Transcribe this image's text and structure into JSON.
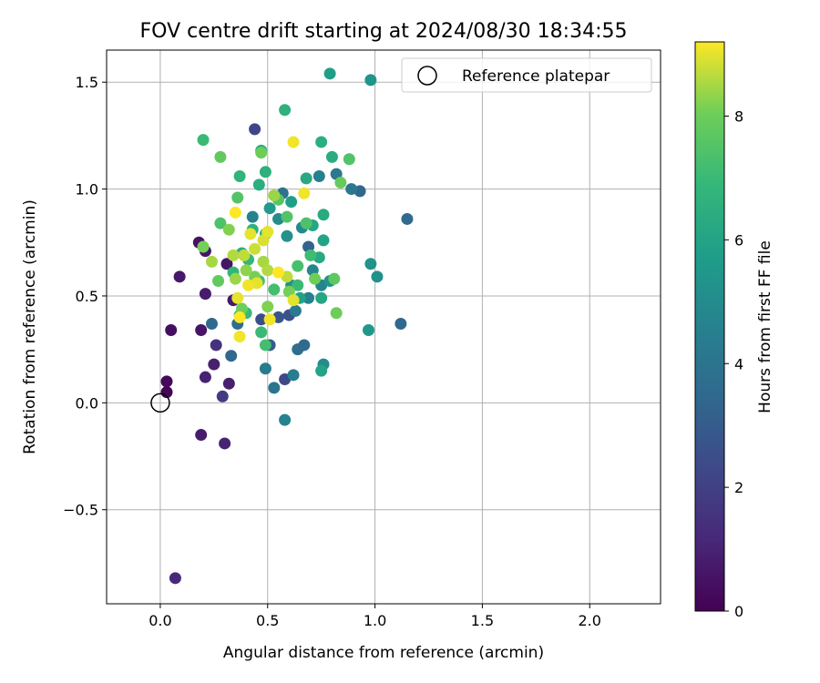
{
  "chart_data": {
    "type": "scatter",
    "title": "FOV centre drift starting at 2024/08/30 18:34:55",
    "xlabel": "Angular distance from reference (arcmin)",
    "ylabel": "Rotation from reference (arcmin)",
    "xlim": [
      -0.25,
      2.33
    ],
    "ylim": [
      -0.94,
      1.65
    ],
    "xticks": [
      {
        "v": 0.0,
        "label": "0.0"
      },
      {
        "v": 0.5,
        "label": "0.5"
      },
      {
        "v": 1.0,
        "label": "1.0"
      },
      {
        "v": 1.5,
        "label": "1.5"
      },
      {
        "v": 2.0,
        "label": "2.0"
      }
    ],
    "yticks": [
      {
        "v": -0.5,
        "label": "−0.5"
      },
      {
        "v": 0.0,
        "label": "0.0"
      },
      {
        "v": 0.5,
        "label": "0.5"
      },
      {
        "v": 1.0,
        "label": "1.0"
      },
      {
        "v": 1.5,
        "label": "1.5"
      }
    ],
    "grid": true,
    "legend": {
      "position": "top-right",
      "label": "Reference platepar"
    },
    "reference_point": {
      "x": 0.0,
      "y": 0.0
    },
    "colorbar": {
      "label": "Hours from first FF file",
      "min": 0,
      "max": 9.2,
      "colormap": "viridis",
      "ticks": [
        {
          "v": 0,
          "label": "0"
        },
        {
          "v": 2,
          "label": "2"
        },
        {
          "v": 4,
          "label": "4"
        },
        {
          "v": 6,
          "label": "6"
        },
        {
          "v": 8,
          "label": "8"
        }
      ]
    },
    "points": [
      [
        0.03,
        0.05,
        0.1
      ],
      [
        0.03,
        0.1,
        0.2
      ],
      [
        0.05,
        0.34,
        0.4
      ],
      [
        0.18,
        0.75,
        0.5
      ],
      [
        0.21,
        0.71,
        0.6
      ],
      [
        0.09,
        0.59,
        0.7
      ],
      [
        0.21,
        0.51,
        0.8
      ],
      [
        0.19,
        0.34,
        0.6
      ],
      [
        0.31,
        0.65,
        0.6
      ],
      [
        0.34,
        0.48,
        0.7
      ],
      [
        0.25,
        0.18,
        0.9
      ],
      [
        0.32,
        0.09,
        0.9
      ],
      [
        0.21,
        0.12,
        1.0
      ],
      [
        0.19,
        -0.15,
        0.8
      ],
      [
        0.3,
        -0.19,
        1.0
      ],
      [
        0.07,
        -0.82,
        1.2
      ],
      [
        0.26,
        0.27,
        1.5
      ],
      [
        0.29,
        0.03,
        1.8
      ],
      [
        0.44,
        1.28,
        2.2
      ],
      [
        0.58,
        0.11,
        2.3
      ],
      [
        0.47,
        0.39,
        2.5
      ],
      [
        0.51,
        0.27,
        3.0
      ],
      [
        0.55,
        0.4,
        2.8
      ],
      [
        0.6,
        0.41,
        2.6
      ],
      [
        0.33,
        0.22,
        3.4
      ],
      [
        0.24,
        0.37,
        3.5
      ],
      [
        0.36,
        0.37,
        3.7
      ],
      [
        0.93,
        0.99,
        3.4
      ],
      [
        1.15,
        0.86,
        3.6
      ],
      [
        1.12,
        0.37,
        3.5
      ],
      [
        0.69,
        0.73,
        3.3
      ],
      [
        0.64,
        0.25,
        3.7
      ],
      [
        0.67,
        0.27,
        3.6
      ],
      [
        0.53,
        0.07,
        4.0
      ],
      [
        0.49,
        0.16,
        4.3
      ],
      [
        0.62,
        0.13,
        4.4
      ],
      [
        0.58,
        -0.08,
        4.6
      ],
      [
        0.57,
        0.98,
        3.9
      ],
      [
        0.89,
        1.0,
        4.1
      ],
      [
        0.82,
        1.07,
        4.2
      ],
      [
        0.74,
        1.06,
        4.5
      ],
      [
        0.63,
        0.43,
        4.2
      ],
      [
        0.69,
        0.49,
        4.5
      ],
      [
        0.75,
        0.55,
        4.7
      ],
      [
        0.76,
        0.18,
        5.0
      ],
      [
        0.71,
        0.62,
        4.8
      ],
      [
        0.66,
        0.82,
        4.9
      ],
      [
        0.43,
        0.87,
        4.6
      ],
      [
        0.55,
        0.86,
        5.0
      ],
      [
        0.59,
        0.78,
        5.2
      ],
      [
        0.61,
        0.55,
        5.1
      ],
      [
        0.79,
        0.57,
        5.3
      ],
      [
        0.97,
        0.34,
        5.5
      ],
      [
        0.98,
        0.65,
        5.3
      ],
      [
        1.01,
        0.59,
        5.2
      ],
      [
        0.98,
        1.51,
        5.4
      ],
      [
        0.79,
        1.54,
        5.8
      ],
      [
        0.51,
        0.91,
        5.6
      ],
      [
        0.61,
        0.94,
        5.8
      ],
      [
        0.65,
        0.49,
        5.9
      ],
      [
        0.75,
        0.15,
        6.0
      ],
      [
        0.75,
        0.49,
        6.1
      ],
      [
        0.74,
        0.68,
        6.2
      ],
      [
        0.76,
        0.76,
        6.0
      ],
      [
        0.71,
        0.83,
        6.1
      ],
      [
        0.76,
        0.88,
        6.3
      ],
      [
        0.8,
        1.15,
        6.4
      ],
      [
        0.75,
        1.22,
        6.5
      ],
      [
        0.68,
        1.05,
        6.2
      ],
      [
        0.58,
        1.37,
        6.6
      ],
      [
        0.47,
        1.18,
        6.4
      ],
      [
        0.46,
        1.02,
        6.5
      ],
      [
        0.49,
        1.08,
        6.6
      ],
      [
        0.37,
        1.06,
        6.7
      ],
      [
        0.49,
        0.79,
        6.8
      ],
      [
        0.43,
        0.81,
        6.6
      ],
      [
        0.41,
        0.67,
        6.9
      ],
      [
        0.38,
        0.7,
        6.5
      ],
      [
        0.34,
        0.61,
        6.8
      ],
      [
        0.4,
        0.42,
        7.0
      ],
      [
        0.37,
        0.41,
        6.9
      ],
      [
        0.47,
        0.33,
        7.0
      ],
      [
        0.49,
        0.27,
        7.2
      ],
      [
        0.46,
        0.57,
        7.1
      ],
      [
        0.53,
        0.53,
        7.2
      ],
      [
        0.64,
        0.55,
        7.0
      ],
      [
        0.64,
        0.64,
        7.3
      ],
      [
        0.7,
        0.69,
        7.1
      ],
      [
        0.68,
        0.84,
        7.4
      ],
      [
        0.59,
        0.87,
        7.5
      ],
      [
        0.55,
        0.95,
        7.6
      ],
      [
        0.36,
        0.96,
        7.5
      ],
      [
        0.28,
        0.84,
        7.4
      ],
      [
        0.2,
        1.23,
        7.0
      ],
      [
        0.28,
        1.15,
        7.8
      ],
      [
        0.47,
        1.17,
        8.0
      ],
      [
        0.84,
        1.03,
        7.9
      ],
      [
        0.88,
        1.14,
        7.5
      ],
      [
        0.81,
        0.58,
        7.7
      ],
      [
        0.82,
        0.42,
        8.0
      ],
      [
        0.72,
        0.58,
        8.0
      ],
      [
        0.6,
        0.52,
        8.1
      ],
      [
        0.5,
        0.45,
        8.2
      ],
      [
        0.44,
        0.59,
        8.1
      ],
      [
        0.4,
        0.62,
        8.3
      ],
      [
        0.38,
        0.44,
        8.0
      ],
      [
        0.35,
        0.58,
        8.4
      ],
      [
        0.32,
        0.81,
        8.2
      ],
      [
        0.27,
        0.57,
        7.8
      ],
      [
        0.2,
        0.73,
        8.1
      ],
      [
        0.24,
        0.66,
        8.5
      ],
      [
        0.34,
        0.69,
        8.6
      ],
      [
        0.39,
        0.69,
        8.7
      ],
      [
        0.44,
        0.72,
        8.8
      ],
      [
        0.48,
        0.66,
        8.5
      ],
      [
        0.5,
        0.62,
        8.6
      ],
      [
        0.53,
        0.97,
        8.4
      ],
      [
        0.59,
        0.59,
        8.7
      ],
      [
        0.48,
        0.76,
        8.9
      ],
      [
        0.45,
        0.56,
        9.0
      ],
      [
        0.41,
        0.55,
        9.1
      ],
      [
        0.42,
        0.79,
        9.0
      ],
      [
        0.37,
        0.31,
        9.1
      ],
      [
        0.36,
        0.49,
        9.0
      ],
      [
        0.37,
        0.4,
        9.2
      ],
      [
        0.51,
        0.39,
        9.1
      ],
      [
        0.55,
        0.61,
        9.2
      ],
      [
        0.62,
        0.48,
        9.0
      ],
      [
        0.62,
        1.22,
        9.1
      ],
      [
        0.67,
        0.98,
        9.1
      ],
      [
        0.35,
        0.89,
        9.2
      ],
      [
        0.5,
        0.8,
        9.0
      ]
    ]
  }
}
